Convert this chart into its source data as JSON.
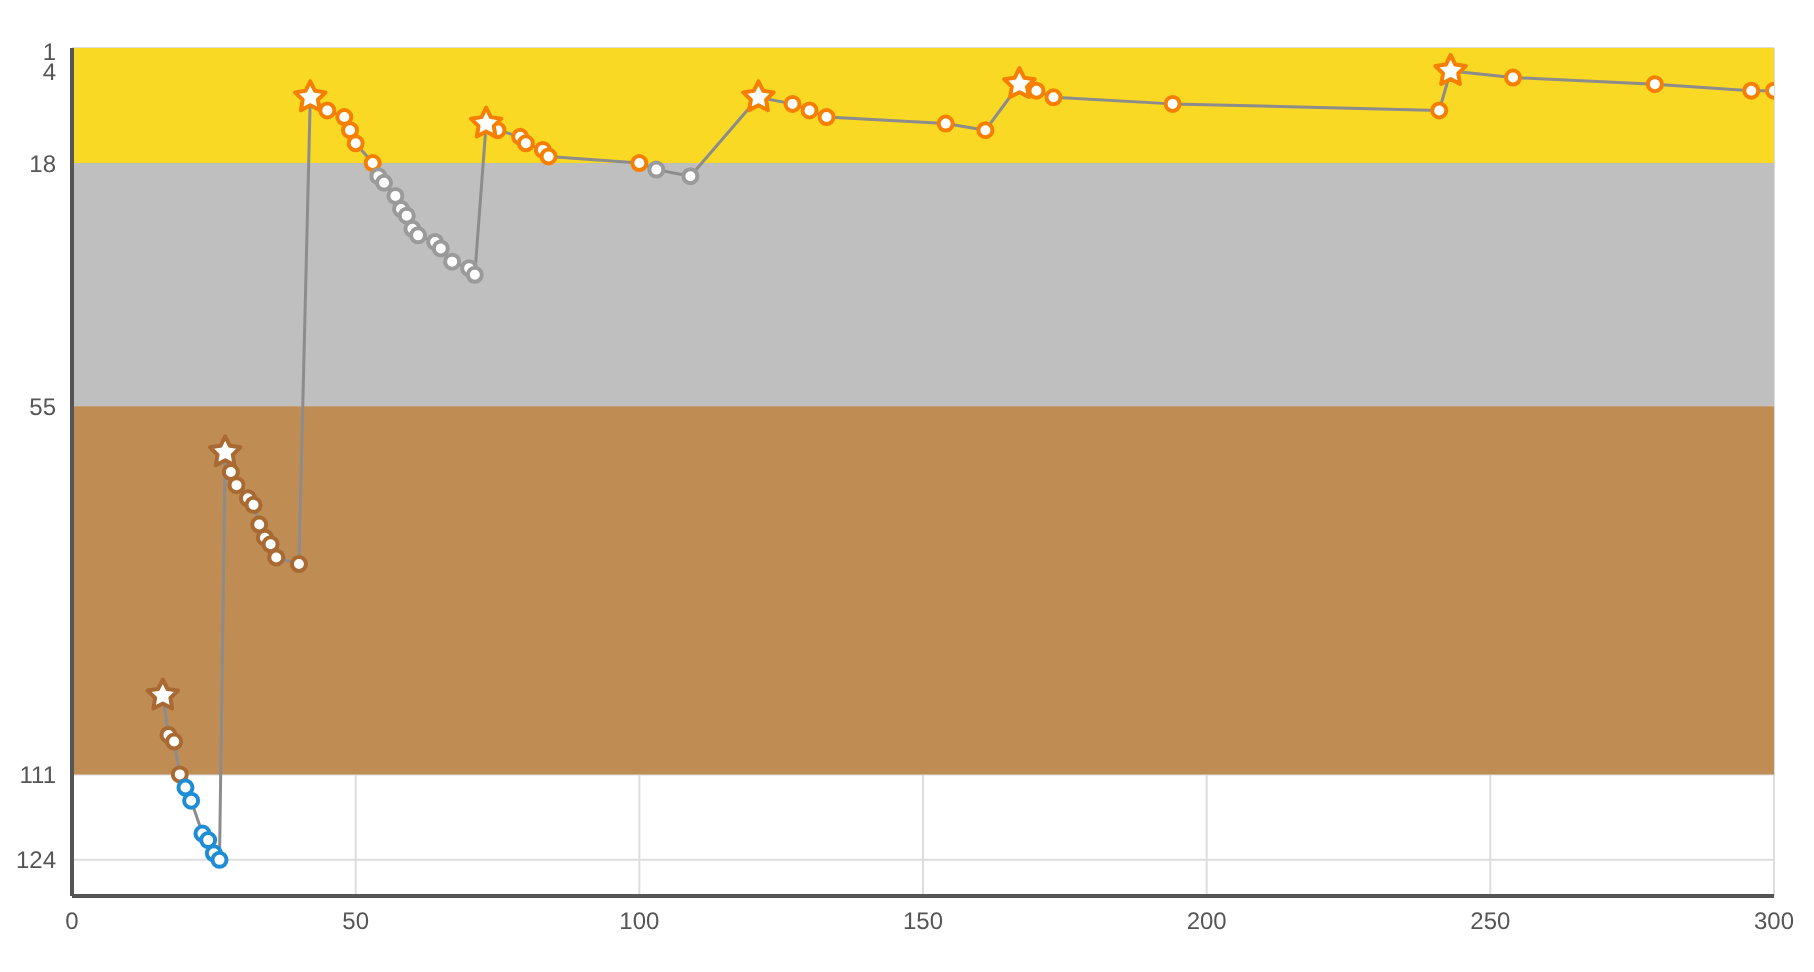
{
  "chart_data": {
    "type": "line",
    "xlim": [
      0,
      300
    ],
    "xticks": [
      0,
      50,
      100,
      150,
      200,
      250,
      300
    ],
    "ylim": [
      129.5,
      0.5
    ],
    "yticks": [
      1,
      4,
      18,
      55,
      111,
      124
    ],
    "grid": true,
    "bands": [
      {
        "axis": "y",
        "from": 0.5,
        "to": 18,
        "color": "#f9d923"
      },
      {
        "axis": "y",
        "from": 18,
        "to": 55,
        "color": "#bfbfbf"
      },
      {
        "axis": "y",
        "from": 55,
        "to": 111,
        "color": "#bf8c54"
      }
    ],
    "series": [
      {
        "marker": "circle",
        "color": "#8c8c8c",
        "x": [
          16,
          17,
          18,
          19,
          20,
          21,
          23,
          24,
          25,
          26,
          27,
          28,
          29,
          31,
          32,
          33,
          34,
          35,
          36,
          40,
          42,
          45,
          48,
          49,
          50,
          53,
          54,
          55,
          57,
          58,
          59,
          60,
          61,
          64,
          65,
          67,
          70,
          71,
          73,
          75,
          79,
          80,
          83,
          84,
          100,
          103,
          109,
          121,
          127,
          130,
          133,
          154,
          161,
          167,
          170,
          173,
          194,
          241,
          243,
          254,
          279,
          296,
          300
        ],
        "values": [
          99,
          105,
          106,
          111,
          113,
          115,
          120,
          121,
          123,
          124,
          62,
          65,
          67,
          69,
          70,
          73,
          75,
          76,
          78,
          79,
          8,
          10,
          11,
          13,
          15,
          18,
          20,
          21,
          23,
          25,
          26,
          28,
          29,
          30,
          31,
          33,
          34,
          35,
          12,
          13,
          14,
          15,
          16,
          17,
          18,
          19,
          20,
          8,
          9,
          10,
          11,
          12,
          13,
          6,
          7,
          8,
          9,
          10,
          4,
          5,
          6,
          7,
          7
        ],
        "colors": [
          "#a86a32",
          "#a86a32",
          "#a86a32",
          "#a86a32",
          "#1f8dd6",
          "#1f8dd6",
          "#1f8dd6",
          "#1f8dd6",
          "#1f8dd6",
          "#1f8dd6",
          "#a86a32",
          "#a86a32",
          "#a86a32",
          "#a86a32",
          "#a86a32",
          "#a86a32",
          "#a86a32",
          "#a86a32",
          "#a86a32",
          "#a86a32",
          "#f77f00",
          "#f77f00",
          "#f77f00",
          "#f77f00",
          "#f77f00",
          "#f77f00",
          "#9a9a9a",
          "#9a9a9a",
          "#9a9a9a",
          "#9a9a9a",
          "#9a9a9a",
          "#9a9a9a",
          "#9a9a9a",
          "#9a9a9a",
          "#9a9a9a",
          "#9a9a9a",
          "#9a9a9a",
          "#9a9a9a",
          "#f77f00",
          "#f77f00",
          "#f77f00",
          "#f77f00",
          "#f77f00",
          "#f77f00",
          "#f77f00",
          "#9a9a9a",
          "#9a9a9a",
          "#f77f00",
          "#f77f00",
          "#f77f00",
          "#f77f00",
          "#f77f00",
          "#f77f00",
          "#f77f00",
          "#f77f00",
          "#f77f00",
          "#f77f00",
          "#f77f00",
          "#f77f00",
          "#f77f00",
          "#f77f00",
          "#f77f00",
          "#f77f00"
        ]
      },
      {
        "type": "scatter",
        "marker": "star",
        "x": [
          16,
          27,
          42,
          73,
          121,
          167,
          243
        ],
        "values": [
          99,
          62,
          8,
          12,
          8,
          6,
          4
        ],
        "colors": [
          "#a86a32",
          "#a86a32",
          "#f77f00",
          "#f77f00",
          "#f77f00",
          "#f77f00",
          "#f77f00"
        ]
      }
    ]
  }
}
